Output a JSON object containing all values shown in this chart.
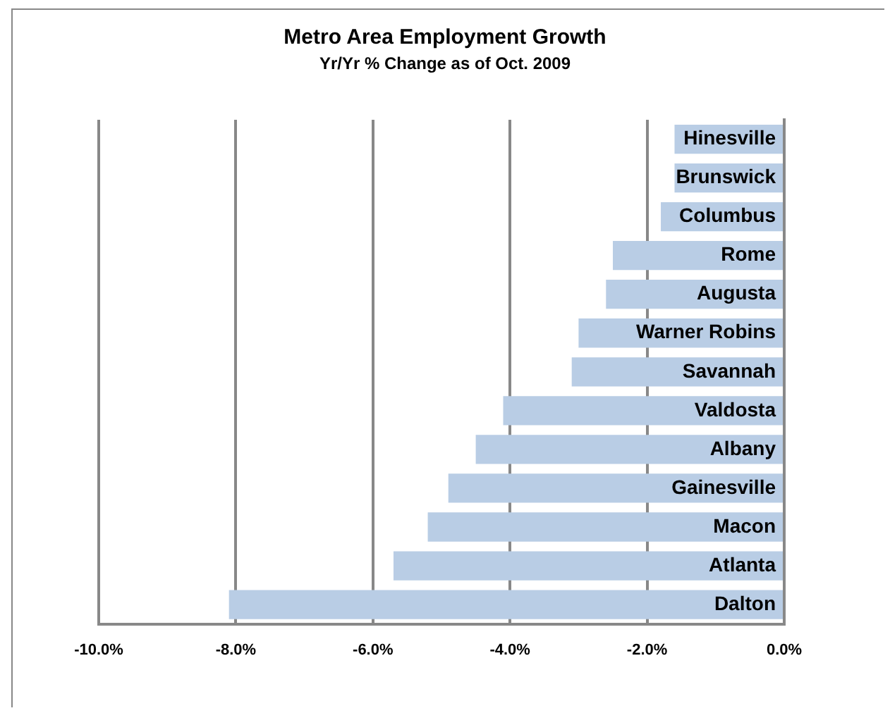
{
  "chart_data": {
    "type": "bar",
    "orientation": "horizontal",
    "title": "Metro Area Employment Growth",
    "subtitle": "Yr/Yr % Change as of Oct. 2009",
    "categories": [
      "Hinesville",
      "Brunswick",
      "Columbus",
      "Rome",
      "Augusta",
      "Warner Robins",
      "Savannah",
      "Valdosta",
      "Albany",
      "Gainesville",
      "Macon",
      "Atlanta",
      "Dalton"
    ],
    "values": [
      -1.6,
      -1.6,
      -1.8,
      -2.5,
      -2.6,
      -3.0,
      -3.1,
      -4.1,
      -4.5,
      -4.9,
      -5.2,
      -5.7,
      -8.1
    ],
    "color": "#b9cde5",
    "xlim": [
      -10,
      0
    ],
    "xticks": [
      {
        "value": -10,
        "label": "-10.0%"
      },
      {
        "value": -8,
        "label": "-8.0%"
      },
      {
        "value": -6,
        "label": "-6.0%"
      },
      {
        "value": -4,
        "label": "-4.0%"
      },
      {
        "value": -2,
        "label": "-2.0%"
      },
      {
        "value": 0,
        "label": "0.0%"
      }
    ],
    "grid": "x",
    "legend": false
  }
}
